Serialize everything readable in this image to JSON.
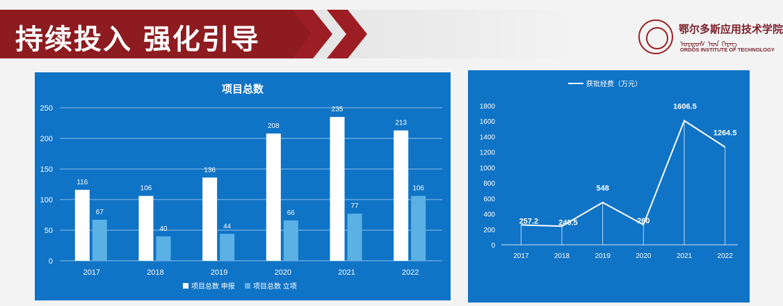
{
  "header": {
    "title": "持续投入  强化引导",
    "logo": {
      "cn": "鄂尔多斯应用技术学院",
      "mn": "ᠣᠷᠳᠣᠰ ᠤᠨ ᠬᠡᠷᠡᠭ",
      "en": "ORDOS INSTITUTE OF TECHNOLOGY"
    },
    "brand_color": "#8d1b20"
  },
  "colors": {
    "panel": "#0f73c6",
    "series1": "#ffffff",
    "series2": "#5bb1e4",
    "text": "#ffffff"
  },
  "chart_data": [
    {
      "type": "bar",
      "title": "项目总数",
      "categories": [
        "2017",
        "2018",
        "2019",
        "2020",
        "2021",
        "2022"
      ],
      "series": [
        {
          "name": "项目总数 申报",
          "values": [
            116,
            106,
            136,
            208,
            235,
            213
          ]
        },
        {
          "name": "项目总数 立项",
          "values": [
            67,
            40,
            44,
            66,
            77,
            106
          ]
        }
      ],
      "ylim": [
        0,
        250
      ],
      "yticks": [
        "0",
        "50",
        "100",
        "150",
        "200",
        "250"
      ],
      "grid": true,
      "legend": "bottom"
    },
    {
      "type": "line",
      "title": "",
      "categories": [
        "2017",
        "2018",
        "2019",
        "2020",
        "2021",
        "2022"
      ],
      "series": [
        {
          "name": "获批经费（万元）",
          "values": [
            257.2,
            240.5,
            548,
            260,
            1606.5,
            1264.5
          ]
        }
      ],
      "labels": [
        "257.2",
        "240.5",
        "548",
        "260",
        "1606.5",
        "1264.5"
      ],
      "ylim": [
        0,
        1800
      ],
      "yticks": [
        "0",
        "200",
        "400",
        "600",
        "800",
        "1000",
        "1200",
        "1400",
        "1600",
        "1800"
      ],
      "grid": false,
      "legend": "top"
    }
  ]
}
